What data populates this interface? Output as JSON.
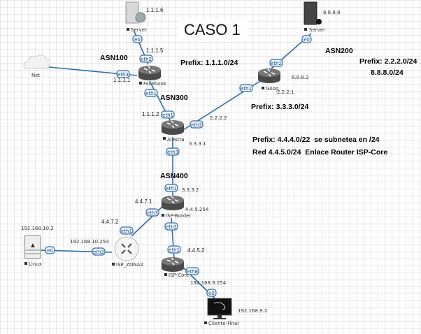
{
  "title": "CASO 1",
  "asn": {
    "asn100": "ASN100",
    "asn200": "ASN200",
    "asn300": "ASN300",
    "asn400": "ASN400"
  },
  "notes": {
    "prefix1": "Prefix: 1.1.1.0/24",
    "prefix2a": "Prefix: 2.2.2.0/24",
    "prefix2b": "8.8.8.0/24",
    "prefix3": "Prefix: 3.3.3.0/24",
    "prefix4": "Prefix: 4.4.4.0/22  se subnetea en /24",
    "red": "Red 4.4.5.0/24  Enlace Router ISP-Core"
  },
  "nodes": {
    "server1": "Server",
    "server2": "Server",
    "net": "Net",
    "facebook": "Facebook",
    "alestra": "Alestra",
    "google": "Goog",
    "isp_border": "ISP-Border",
    "isp_core": "ISP-Core",
    "isp_zona2": "ISP_ZONA2",
    "linux": "Linux",
    "cliente": "Cliente-Final"
  },
  "ips": {
    "s1": "1.1.1.6",
    "fb_eth2": "1.1.1.5",
    "fb_eth3": "1.1.1.1",
    "al_eth1": "1.1.1.2",
    "al_eth2": "2.2.2.2",
    "al_eth3": "3.3.3.1",
    "g_eth1": "2.2.2.1",
    "g_eth2": "8.8.8.2",
    "s2": "8.8.8.8",
    "b_eth1": "3.3.3.2",
    "b_eth3": "4.4.7.1",
    "b_eth2": "4.4.5.254",
    "z_eth1": "4.4.7.2",
    "z_eth2": "192.168.10.254",
    "linux": "192.168.10.2",
    "c_eth1": "4.4.5.2",
    "c_eth8": "192.168.9.254",
    "cliente": "192.168.9.2"
  },
  "ifaces": {
    "s1_e0": "e0",
    "fb_eth2": "eth2",
    "fb_eth3": "eth3",
    "fb_eth1": "eth1",
    "al_eth1": "eth1",
    "al_eth2": "eth2",
    "al_eth3": "eth3",
    "g_eth1": "eth1",
    "g_eth2": "eth2",
    "s2_e0": "e0",
    "b_eth1": "eth1",
    "b_eth3": "eth3",
    "b_eth2": "eth2",
    "z_eth1": "eth1",
    "z_eth2": "eth2",
    "l_e0": "e0",
    "c_eth1": "eth1",
    "c_eth8": "eth8",
    "cf_e0": "e0"
  },
  "colors": {
    "link": "#2a6ebb",
    "router": "#5f5f5f"
  }
}
